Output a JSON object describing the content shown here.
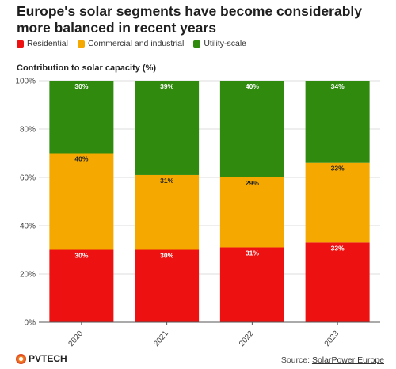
{
  "header": {
    "title": "Europe's solar segments have become considerably more balanced in recent years",
    "subtitle": "Contribution to solar capacity (%)"
  },
  "legend": [
    {
      "label": "Residential",
      "color": "#ee1111"
    },
    {
      "label": "Commercial and industrial",
      "color": "#f5a900"
    },
    {
      "label": "Utility-scale",
      "color": "#2f8a0e"
    }
  ],
  "footer": {
    "brand": "PVTECH",
    "source_prefix": "Source: ",
    "source_name": "SolarPower Europe"
  },
  "chart_data": {
    "type": "bar",
    "stacked": true,
    "categories": [
      "2020",
      "2021",
      "2022",
      "2023"
    ],
    "series": [
      {
        "name": "Residential",
        "values": [
          30,
          30,
          31,
          33
        ],
        "labels": [
          "30%",
          "30%",
          "31%",
          "33%"
        ],
        "color": "#ee1111",
        "label_color": "#ffffff"
      },
      {
        "name": "Commercial and industrial",
        "values": [
          40,
          31,
          29,
          33
        ],
        "labels": [
          "40%",
          "31%",
          "29%",
          "33%"
        ],
        "color": "#f5a900",
        "label_color": "#222222"
      },
      {
        "name": "Utility-scale",
        "values": [
          30,
          39,
          40,
          34
        ],
        "labels": [
          "30%",
          "39%",
          "40%",
          "34%"
        ],
        "color": "#2f8a0e",
        "label_color": "#ffffff"
      }
    ],
    "yticks": [
      "0%",
      "20%",
      "40%",
      "60%",
      "80%",
      "100%"
    ],
    "ytick_values": [
      0,
      20,
      40,
      60,
      80,
      100
    ],
    "ylim": [
      0,
      100
    ],
    "grid": true
  }
}
